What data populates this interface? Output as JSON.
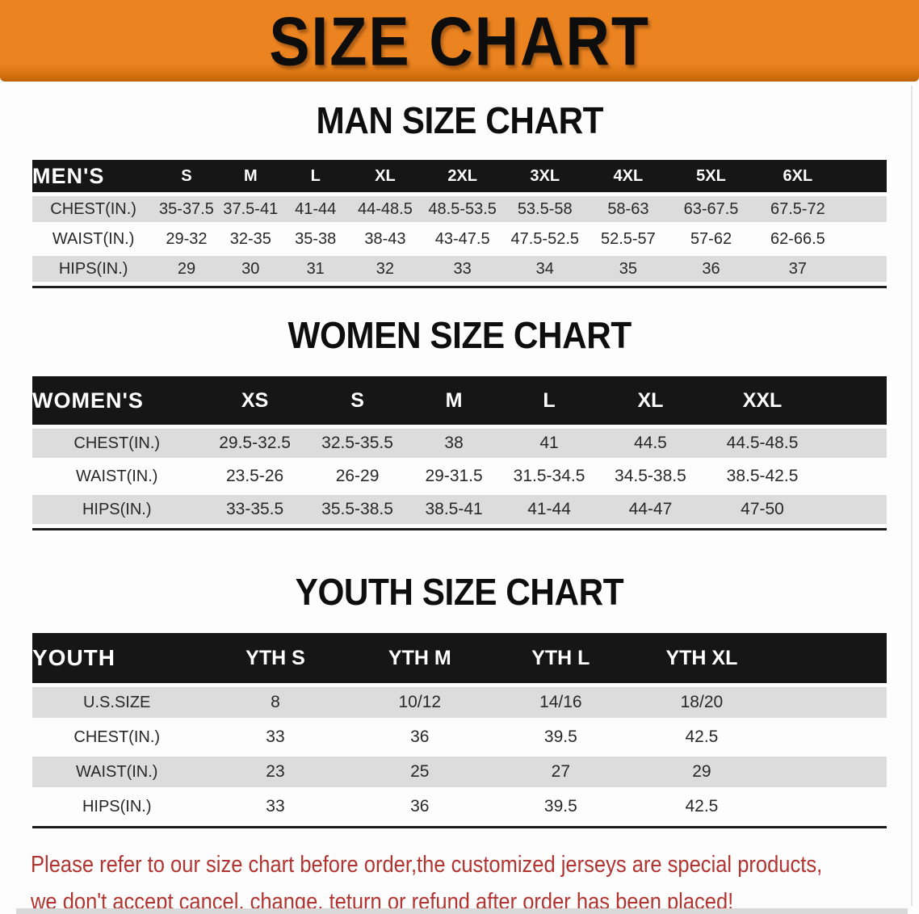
{
  "banner": {
    "title": "SIZE CHART"
  },
  "colors": {
    "banner_orange": "#EB8320",
    "banner_orange_dark": "#BD6106",
    "table_header_black": "#161616",
    "row_stripe_gray": "#DCDCDC",
    "heading_black": "#0E0E0E",
    "disclaimer_red": "#B23430"
  },
  "sections": [
    {
      "heading": "MAN SIZE CHART",
      "group_label": "MEN'S",
      "columns": [
        "S",
        "M",
        "L",
        "XL",
        "2XL",
        "3XL",
        "4XL",
        "5XL",
        "6XL"
      ],
      "rows": [
        {
          "label": "CHEST(IN.)",
          "values": [
            "35-37.5",
            "37.5-41",
            "41-44",
            "44-48.5",
            "48.5-53.5",
            "53.5-58",
            "58-63",
            "63-67.5",
            "67.5-72"
          ]
        },
        {
          "label": "WAIST(IN.)",
          "values": [
            "29-32",
            "32-35",
            "35-38",
            "38-43",
            "43-47.5",
            "47.5-52.5",
            "52.5-57",
            "57-62",
            "62-66.5"
          ]
        },
        {
          "label": "HIPS(IN.)",
          "values": [
            "29",
            "30",
            "31",
            "32",
            "33",
            "34",
            "35",
            "36",
            "37"
          ]
        }
      ]
    },
    {
      "heading": "WOMEN SIZE CHART",
      "group_label": "WOMEN'S",
      "columns": [
        "XS",
        "S",
        "M",
        "L",
        "XL",
        "XXL"
      ],
      "rows": [
        {
          "label": "CHEST(IN.)",
          "values": [
            "29.5-32.5",
            "32.5-35.5",
            "38",
            "41",
            "44.5",
            "44.5-48.5"
          ]
        },
        {
          "label": "WAIST(IN.)",
          "values": [
            "23.5-26",
            "26-29",
            "29-31.5",
            "31.5-34.5",
            "34.5-38.5",
            "38.5-42.5"
          ]
        },
        {
          "label": "HIPS(IN.)",
          "values": [
            "33-35.5",
            "35.5-38.5",
            "38.5-41",
            "41-44",
            "44-47",
            "47-50"
          ]
        }
      ]
    },
    {
      "heading": "YOUTH SIZE CHART",
      "group_label": "YOUTH",
      "columns": [
        "YTH S",
        "YTH M",
        "YTH L",
        "YTH XL"
      ],
      "rows": [
        {
          "label": "U.S.SIZE",
          "values": [
            "8",
            "10/12",
            "14/16",
            "18/20"
          ]
        },
        {
          "label": "CHEST(IN.)",
          "values": [
            "33",
            "36",
            "39.5",
            "42.5"
          ]
        },
        {
          "label": "WAIST(IN.)",
          "values": [
            "23",
            "25",
            "27",
            "29"
          ]
        },
        {
          "label": "HIPS(IN.)",
          "values": [
            "33",
            "36",
            "39.5",
            "42.5"
          ]
        }
      ]
    }
  ],
  "disclaimer": {
    "line1": "Please refer to our size chart before order,the customized jerseys are special products,",
    "line2": "we don't accept cancel, change, teturn or refund after order has been placed!"
  }
}
